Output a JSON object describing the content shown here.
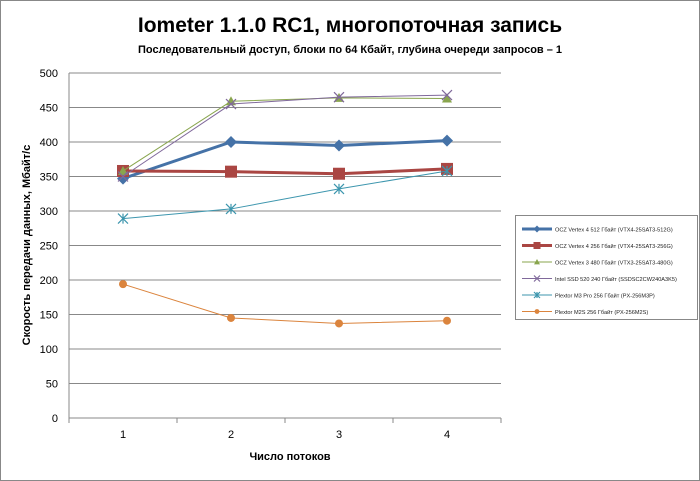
{
  "chart_data": {
    "type": "line",
    "title": "Iometer 1.1.0 RC1, многопоточная запись",
    "subtitle": "Последовательный  доступ, блоки  по 64 Кбайт,  глубина очереди запросов  – 1",
    "xlabel": "Число  потоков",
    "ylabel": "Скорость  передачи данных, Мбайт/с",
    "categories": [
      "1",
      "2",
      "3",
      "4"
    ],
    "ylim": [
      0,
      500
    ],
    "yticks": [
      "0",
      "50",
      "100",
      "150",
      "200",
      "250",
      "300",
      "350",
      "400",
      "450",
      "500"
    ],
    "grid": true,
    "legend_position": "right",
    "series": [
      {
        "name": "OCZ Vertex  4 512 Гбайт (VTX4-25SAT3-512G)",
        "color": "#4572a7",
        "marker": "diamond",
        "width": 3,
        "values": [
          347,
          400,
          395,
          402
        ]
      },
      {
        "name": "OCZ Vertex  4 256 Гбайт (VTX4-25SAT3-256G)",
        "color": "#aa4643",
        "marker": "square",
        "width": 3,
        "values": [
          358,
          357,
          354,
          361
        ]
      },
      {
        "name": "OCZ Vertex  3 480 Гбайт (VTX3-25SAT3-480G)",
        "color": "#89a54e",
        "marker": "triangle",
        "width": 1,
        "values": [
          358,
          459,
          464,
          463
        ]
      },
      {
        "name": "Intel SSD 520 240 Гбайт (SSDSC2CW240A3K5)",
        "color": "#80699b",
        "marker": "x",
        "width": 1,
        "values": [
          350,
          455,
          465,
          468
        ]
      },
      {
        "name": "Plextor M3 Pro 256 Гбайт (PX-256M3P)",
        "color": "#3d96ae",
        "marker": "star",
        "width": 1,
        "values": [
          289,
          303,
          332,
          358
        ]
      },
      {
        "name": "Plextor M2S 256 Гбайт (PX-256M2S)",
        "color": "#db843d",
        "marker": "circle",
        "width": 1,
        "values": [
          194,
          145,
          137,
          141
        ]
      }
    ]
  }
}
